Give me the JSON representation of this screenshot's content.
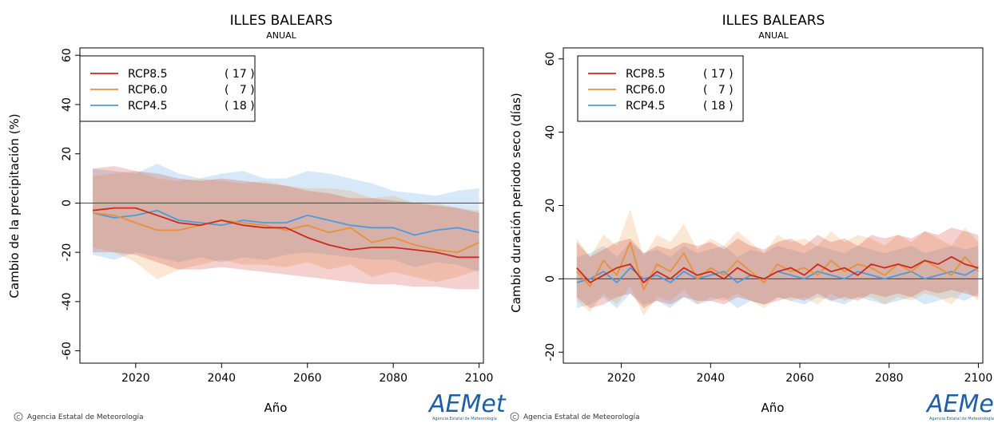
{
  "charts": [
    {
      "id": "left",
      "title": "ILLES BALEARS",
      "subtitle": "ANUAL",
      "ylabel": "Cambio de la precipitación (%)",
      "xlabel": "Año",
      "footer": "Agencia Estatal de Meteorología",
      "logo": "AEMet",
      "logo_sub": "Agencia Estatal de Meteorología",
      "yticks": [
        "60",
        "40",
        "20",
        "0",
        "-20",
        "-40",
        "-60"
      ],
      "xticks": [
        "2020",
        "2040",
        "2060",
        "2080",
        "2100"
      ],
      "legend": [
        {
          "name": "RCP8.5",
          "count": "( 17 )"
        },
        {
          "name": "RCP6.0",
          "count": "(   7 )"
        },
        {
          "name": "RCP4.5",
          "count": "( 18 )"
        }
      ]
    },
    {
      "id": "right",
      "title": "ILLES BALEARS",
      "subtitle": "ANUAL",
      "ylabel": "Cambio duración periodo seco (días)",
      "xlabel": "Año",
      "footer": "Agencia Estatal de Meteorología",
      "logo": "AEMet",
      "logo_sub": "Agencia Estatal de Meteorología",
      "yticks": [
        "60",
        "40",
        "20",
        "0",
        "-20"
      ],
      "xticks": [
        "2020",
        "2040",
        "2060",
        "2080",
        "2100"
      ],
      "legend": [
        {
          "name": "RCP8.5",
          "count": "( 17 )"
        },
        {
          "name": "RCP6.0",
          "count": "(   7 )"
        },
        {
          "name": "RCP4.5",
          "count": "( 18 )"
        }
      ]
    }
  ],
  "colors": {
    "RCP8.5": "#cc2a1f",
    "RCP6.0": "#e8913c",
    "RCP4.5": "#4a9be0"
  },
  "chart_data": [
    {
      "type": "line",
      "title": "ILLES BALEARS",
      "subtitle": "ANUAL",
      "xlabel": "Año",
      "ylabel": "Cambio de la precipitación (%)",
      "xlim": [
        2007,
        2101
      ],
      "ylim": [
        -65,
        63
      ],
      "yticks": [
        60,
        40,
        20,
        0,
        -20,
        -40,
        -60
      ],
      "xticks": [
        2020,
        2040,
        2060,
        2080,
        2100
      ],
      "legend_position": "top-left",
      "reference_line": 0,
      "x": [
        2010,
        2015,
        2020,
        2025,
        2030,
        2035,
        2040,
        2045,
        2050,
        2055,
        2060,
        2065,
        2070,
        2075,
        2080,
        2085,
        2090,
        2095,
        2100
      ],
      "series": [
        {
          "name": "RCP8.5",
          "values": [
            -3,
            -2,
            -2,
            -5,
            -8,
            -9,
            -7,
            -9,
            -10,
            -10,
            -14,
            -17,
            -19,
            -18,
            -18,
            -19,
            -20,
            -22,
            -22
          ],
          "upper": [
            14,
            15,
            13,
            12,
            10,
            9,
            10,
            9,
            8,
            7,
            5,
            4,
            2,
            2,
            1,
            0,
            -1,
            -2,
            -4
          ],
          "lower": [
            -20,
            -20,
            -21,
            -24,
            -27,
            -27,
            -26,
            -27,
            -28,
            -29,
            -30,
            -31,
            -32,
            -33,
            -33,
            -34,
            -34,
            -35,
            -35
          ]
        },
        {
          "name": "RCP6.0",
          "values": [
            -4,
            -5,
            -8,
            -11,
            -11,
            -9,
            -7,
            -8,
            -9,
            -11,
            -9,
            -12,
            -10,
            -16,
            -14,
            -17,
            -19,
            -20,
            -16
          ],
          "upper": [
            11,
            12,
            13,
            10,
            9,
            10,
            9,
            8,
            9,
            7,
            6,
            6,
            5,
            2,
            3,
            0,
            0,
            -2,
            -3
          ],
          "lower": [
            -18,
            -20,
            -24,
            -31,
            -27,
            -25,
            -23,
            -25,
            -25,
            -26,
            -24,
            -27,
            -25,
            -30,
            -28,
            -30,
            -32,
            -30,
            -27
          ]
        },
        {
          "name": "RCP4.5",
          "values": [
            -4,
            -6,
            -5,
            -3,
            -7,
            -8,
            -9,
            -7,
            -8,
            -8,
            -5,
            -7,
            -9,
            -10,
            -10,
            -13,
            -11,
            -10,
            -12
          ],
          "upper": [
            14,
            13,
            12,
            16,
            12,
            10,
            12,
            13,
            10,
            10,
            13,
            12,
            10,
            8,
            5,
            4,
            3,
            5,
            6
          ],
          "lower": [
            -21,
            -23,
            -20,
            -22,
            -24,
            -22,
            -24,
            -22,
            -23,
            -21,
            -20,
            -21,
            -22,
            -23,
            -23,
            -26,
            -24,
            -25,
            -28
          ]
        }
      ]
    },
    {
      "type": "line",
      "title": "ILLES BALEARS",
      "subtitle": "ANUAL",
      "xlabel": "Año",
      "ylabel": "Cambio duración periodo seco (días)",
      "xlim": [
        2007,
        2101
      ],
      "ylim": [
        -23,
        63
      ],
      "yticks": [
        60,
        40,
        20,
        0,
        -20
      ],
      "xticks": [
        2020,
        2040,
        2060,
        2080,
        2100
      ],
      "legend_position": "top-left",
      "reference_line": 0,
      "x": [
        2010,
        2013,
        2016,
        2019,
        2022,
        2025,
        2028,
        2031,
        2034,
        2037,
        2040,
        2043,
        2046,
        2049,
        2052,
        2055,
        2058,
        2061,
        2064,
        2067,
        2070,
        2073,
        2076,
        2079,
        2082,
        2085,
        2088,
        2091,
        2094,
        2097,
        2100
      ],
      "series": [
        {
          "name": "RCP8.5",
          "values": [
            3,
            -1,
            1,
            3,
            4,
            -1,
            2,
            0,
            3,
            1,
            2,
            0,
            3,
            1,
            0,
            2,
            3,
            1,
            4,
            2,
            3,
            1,
            4,
            3,
            4,
            3,
            5,
            4,
            6,
            4,
            3
          ],
          "upper": [
            10,
            6,
            8,
            10,
            11,
            7,
            9,
            8,
            10,
            9,
            10,
            8,
            11,
            9,
            8,
            10,
            11,
            9,
            12,
            10,
            11,
            9,
            12,
            11,
            12,
            11,
            13,
            12,
            14,
            13,
            12
          ],
          "lower": [
            -5,
            -8,
            -7,
            -5,
            -4,
            -8,
            -6,
            -7,
            -5,
            -6,
            -6,
            -7,
            -5,
            -6,
            -7,
            -6,
            -5,
            -6,
            -4,
            -6,
            -5,
            -6,
            -4,
            -5,
            -4,
            -5,
            -3,
            -4,
            -3,
            -4,
            -5
          ]
        },
        {
          "name": "RCP6.0",
          "values": [
            2,
            -2,
            5,
            1,
            10,
            -3,
            4,
            2,
            7,
            0,
            3,
            1,
            5,
            2,
            -1,
            4,
            2,
            3,
            1,
            5,
            2,
            4,
            3,
            1,
            4,
            2,
            5,
            3,
            1,
            6,
            2
          ],
          "upper": [
            11,
            6,
            12,
            9,
            19,
            6,
            12,
            10,
            15,
            8,
            11,
            9,
            13,
            10,
            7,
            12,
            10,
            11,
            9,
            13,
            10,
            12,
            11,
            9,
            12,
            10,
            13,
            11,
            9,
            14,
            10
          ],
          "lower": [
            -6,
            -9,
            -4,
            -7,
            -2,
            -10,
            -5,
            -6,
            -3,
            -7,
            -5,
            -6,
            -4,
            -6,
            -8,
            -5,
            -6,
            -5,
            -7,
            -4,
            -6,
            -5,
            -5,
            -7,
            -5,
            -6,
            -4,
            -5,
            -7,
            -3,
            -6
          ]
        },
        {
          "name": "RCP4.5",
          "values": [
            -1,
            0,
            2,
            -1,
            3,
            0,
            1,
            -1,
            2,
            0,
            1,
            2,
            -1,
            1,
            0,
            2,
            1,
            0,
            2,
            1,
            0,
            2,
            1,
            0,
            1,
            2,
            0,
            1,
            2,
            1,
            3
          ],
          "upper": [
            6,
            7,
            9,
            6,
            10,
            7,
            8,
            6,
            9,
            7,
            8,
            9,
            6,
            8,
            7,
            9,
            8,
            7,
            9,
            8,
            7,
            9,
            8,
            7,
            8,
            9,
            7,
            8,
            9,
            8,
            9
          ],
          "lower": [
            -8,
            -7,
            -5,
            -8,
            -4,
            -7,
            -6,
            -8,
            -5,
            -7,
            -6,
            -5,
            -8,
            -6,
            -7,
            -5,
            -6,
            -7,
            -5,
            -6,
            -7,
            -5,
            -6,
            -7,
            -6,
            -5,
            -7,
            -6,
            -5,
            -6,
            -4
          ]
        }
      ]
    }
  ]
}
